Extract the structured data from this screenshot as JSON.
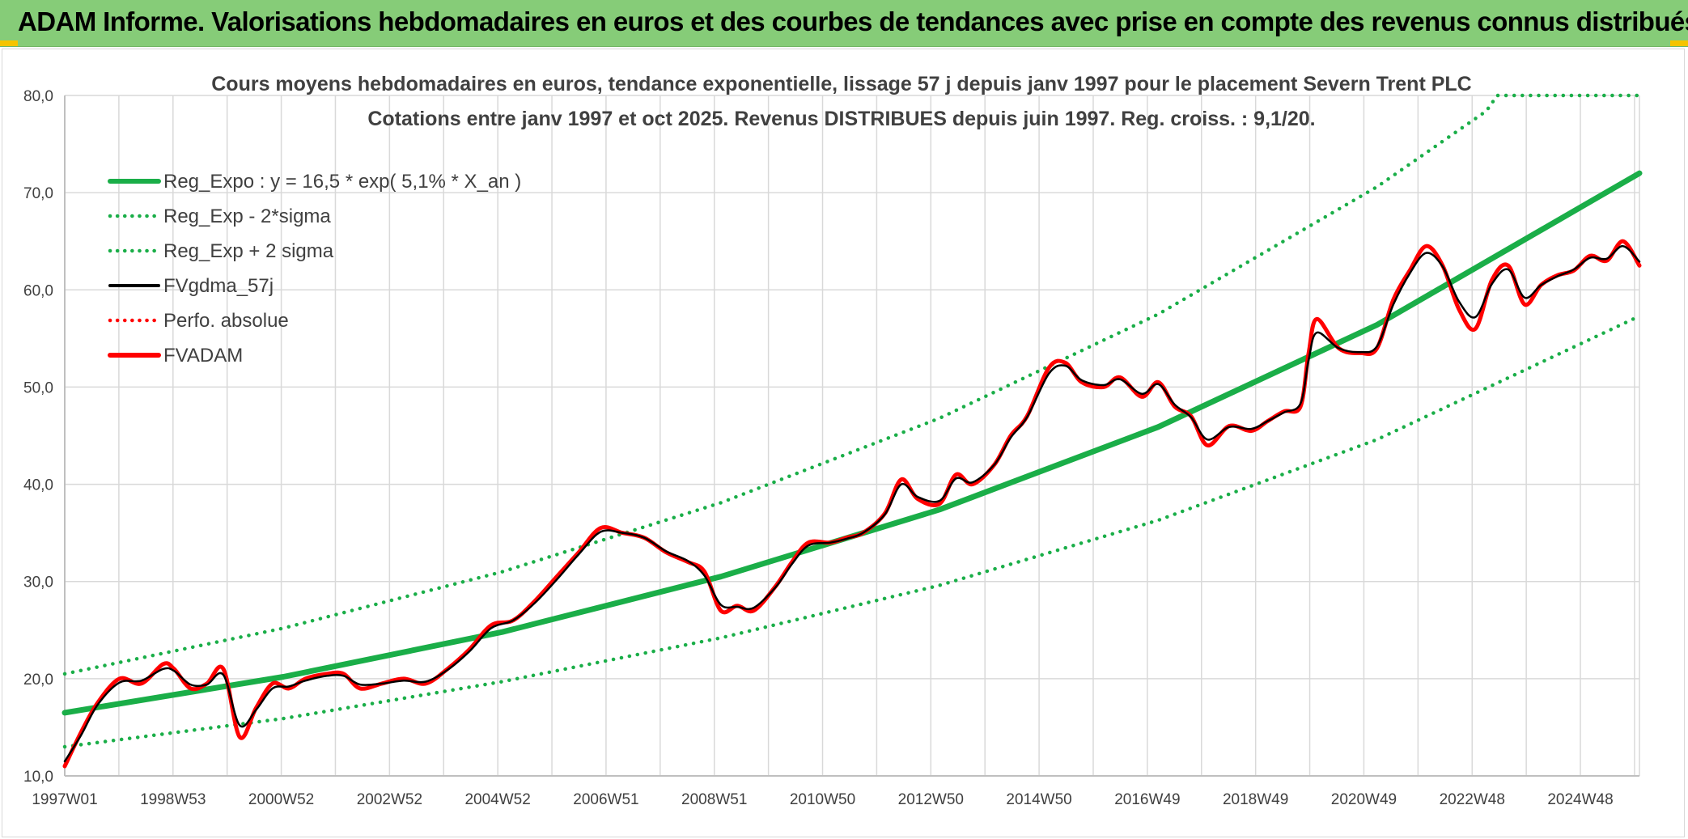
{
  "header": {
    "title": "ADAM Informe. Valorisations hebdomadaires en euros et des courbes de tendances avec prise en compte des revenus connus distribués"
  },
  "colors": {
    "banner": "#86cc78",
    "trend": "#1aae48",
    "price": "#ff0000",
    "smooth": "#000000",
    "grid": "#d9d9d9",
    "corner_accent": "#f5c400"
  },
  "chart_data": {
    "type": "line",
    "title_line1": "Cours moyens hebdomadaires en euros, tendance exponentielle, lissage 57 j depuis janv 1997 pour le placement Severn Trent PLC",
    "title_line2": "Cotations entre janv 1997 et oct 2025. Revenus DISTRIBUES depuis juin 1997. Reg. croiss. : 9,1/20.",
    "x_tick_labels": [
      "1997W01",
      "1998W53",
      "2000W52",
      "2002W52",
      "2004W52",
      "2006W51",
      "2008W51",
      "2010W50",
      "2012W50",
      "2014W50",
      "2016W49",
      "2018W49",
      "2020W49",
      "2022W48",
      "2024W48"
    ],
    "x_range_years": [
      1997.0,
      2025.8
    ],
    "ylim": [
      10,
      80
    ],
    "y_ticks": [
      "10,0",
      "20,0",
      "30,0",
      "40,0",
      "50,0",
      "60,0",
      "70,0",
      "80,0"
    ],
    "grid": true,
    "legend_position": "top-left",
    "legend": [
      {
        "label": "Reg_Expo : y = 16,5 * exp( 5,1% *  X_an )",
        "style": "solid-thick",
        "color": "#1aae48"
      },
      {
        "label": "Reg_Exp - 2*sigma",
        "style": "dotted",
        "color": "#1aae48"
      },
      {
        "label": "Reg_Exp + 2 sigma",
        "style": "dotted",
        "color": "#1aae48"
      },
      {
        "label": "FVgdma_57j",
        "style": "solid",
        "color": "#000000"
      },
      {
        "label": "Perfo. absolue",
        "style": "dotted",
        "color": "#ff0000"
      },
      {
        "label": "FVADAM",
        "style": "solid-thick",
        "color": "#ff0000"
      }
    ],
    "series": [
      {
        "name": "Reg_Expo : y = 16,5 * exp( 5,1% *  X_an )",
        "x": [
          1997.0,
          2001.0,
          2005.0,
          2009.0,
          2013.0,
          2017.0,
          2021.0,
          2025.8
        ],
        "y": [
          16.5,
          20.2,
          24.8,
          30.5,
          37.4,
          45.9,
          56.4,
          72.0
        ]
      },
      {
        "name": "Reg_Exp - 2*sigma",
        "x": [
          1997.0,
          2001.0,
          2005.0,
          2009.0,
          2013.0,
          2017.0,
          2021.0,
          2025.8
        ],
        "y": [
          13.0,
          15.9,
          19.7,
          24.2,
          29.6,
          36.3,
          44.6,
          57.3
        ]
      },
      {
        "name": "Reg_Exp + 2 sigma",
        "x": [
          1997.0,
          2001.0,
          2005.0,
          2009.0,
          2013.0,
          2017.0,
          2021.0,
          2023.0,
          2023.2,
          2025.8
        ],
        "y": [
          20.5,
          25.2,
          31.0,
          38.1,
          46.8,
          57.5,
          70.6,
          78.4,
          80.0,
          80.0
        ]
      },
      {
        "name": "FVADAM",
        "x": [
          1997.0,
          1997.3,
          1997.6,
          1998.0,
          1998.4,
          1998.8,
          1999.0,
          1999.3,
          1999.6,
          1999.9,
          2000.2,
          2000.5,
          2000.8,
          2001.1,
          2001.4,
          2001.8,
          2002.1,
          2002.4,
          2002.8,
          2003.2,
          2003.6,
          2004.0,
          2004.4,
          2004.8,
          2005.2,
          2005.6,
          2006.0,
          2006.4,
          2006.8,
          2007.2,
          2007.6,
          2008.0,
          2008.4,
          2008.7,
          2009.0,
          2009.3,
          2009.6,
          2010.0,
          2010.3,
          2010.6,
          2011.0,
          2011.3,
          2011.6,
          2012.0,
          2012.3,
          2012.6,
          2013.0,
          2013.3,
          2013.6,
          2014.0,
          2014.3,
          2014.6,
          2015.0,
          2015.3,
          2015.6,
          2016.0,
          2016.3,
          2016.7,
          2017.0,
          2017.3,
          2017.6,
          2017.9,
          2018.3,
          2018.7,
          2019.0,
          2019.3,
          2019.6,
          2019.75,
          2019.9,
          2020.3,
          2020.7,
          2021.0,
          2021.3,
          2021.6,
          2021.9,
          2022.2,
          2022.5,
          2022.8,
          2023.1,
          2023.4,
          2023.7,
          2024.0,
          2024.3,
          2024.6,
          2024.9,
          2025.2,
          2025.5,
          2025.8
        ],
        "y": [
          11.0,
          14.5,
          17.5,
          20.0,
          19.5,
          21.5,
          21.0,
          19.0,
          19.5,
          21.0,
          14.0,
          17.0,
          19.5,
          19.0,
          20.0,
          20.5,
          20.5,
          19.0,
          19.5,
          20.0,
          19.5,
          21.0,
          23.0,
          25.5,
          26.0,
          28.0,
          30.5,
          33.0,
          35.5,
          35.0,
          34.5,
          33.0,
          32.0,
          31.0,
          27.0,
          27.5,
          27.0,
          29.5,
          32.0,
          34.0,
          34.0,
          34.5,
          35.0,
          37.0,
          40.5,
          38.5,
          38.0,
          41.0,
          40.0,
          42.0,
          45.0,
          47.0,
          52.0,
          52.5,
          50.5,
          50.0,
          51.0,
          49.0,
          50.5,
          48.0,
          47.0,
          44.0,
          46.0,
          45.5,
          46.5,
          47.5,
          48.0,
          53.5,
          57.0,
          54.0,
          53.5,
          54.0,
          59.0,
          62.0,
          64.5,
          62.5,
          58.0,
          56.0,
          61.0,
          62.5,
          58.5,
          60.5,
          61.5,
          62.0,
          63.5,
          63.0,
          65.0,
          62.5
        ]
      },
      {
        "name": "FVgdma_57j",
        "x": [
          1997.0,
          1997.3,
          1997.6,
          1998.0,
          1998.4,
          1998.8,
          1999.0,
          1999.3,
          1999.6,
          1999.9,
          2000.2,
          2000.5,
          2000.8,
          2001.1,
          2001.4,
          2001.8,
          2002.1,
          2002.4,
          2002.8,
          2003.2,
          2003.6,
          2004.0,
          2004.4,
          2004.8,
          2005.2,
          2005.6,
          2006.0,
          2006.4,
          2006.8,
          2007.2,
          2007.6,
          2008.0,
          2008.4,
          2008.7,
          2009.0,
          2009.3,
          2009.6,
          2010.0,
          2010.3,
          2010.6,
          2011.0,
          2011.3,
          2011.6,
          2012.0,
          2012.3,
          2012.6,
          2013.0,
          2013.3,
          2013.6,
          2014.0,
          2014.3,
          2014.6,
          2015.0,
          2015.3,
          2015.6,
          2016.0,
          2016.3,
          2016.7,
          2017.0,
          2017.3,
          2017.6,
          2017.9,
          2018.3,
          2018.7,
          2019.0,
          2019.3,
          2019.6,
          2019.75,
          2019.9,
          2020.3,
          2020.7,
          2021.0,
          2021.3,
          2021.6,
          2021.9,
          2022.2,
          2022.5,
          2022.8,
          2023.1,
          2023.4,
          2023.7,
          2024.0,
          2024.3,
          2024.6,
          2024.9,
          2025.2,
          2025.5,
          2025.8
        ],
        "y": [
          11.5,
          14.2,
          17.3,
          19.6,
          19.8,
          21.0,
          20.8,
          19.4,
          19.4,
          20.4,
          15.2,
          16.8,
          19.0,
          19.2,
          19.8,
          20.3,
          20.3,
          19.4,
          19.5,
          19.8,
          19.7,
          20.9,
          22.8,
          25.2,
          26.0,
          27.8,
          30.2,
          32.8,
          35.1,
          35.0,
          34.5,
          33.1,
          32.1,
          30.6,
          27.6,
          27.4,
          27.3,
          29.4,
          31.8,
          33.7,
          34.0,
          34.4,
          35.0,
          36.9,
          40.0,
          38.7,
          38.3,
          40.6,
          40.2,
          42.0,
          44.8,
          46.9,
          51.4,
          52.2,
          50.7,
          50.2,
          50.8,
          49.3,
          50.3,
          48.2,
          46.9,
          44.6,
          45.9,
          45.7,
          46.5,
          47.4,
          48.3,
          52.8,
          55.6,
          54.0,
          53.6,
          54.2,
          58.5,
          61.7,
          63.8,
          62.4,
          58.8,
          57.2,
          60.6,
          62.1,
          59.2,
          60.5,
          61.4,
          62.1,
          63.3,
          63.2,
          64.5,
          62.9
        ]
      }
    ]
  }
}
